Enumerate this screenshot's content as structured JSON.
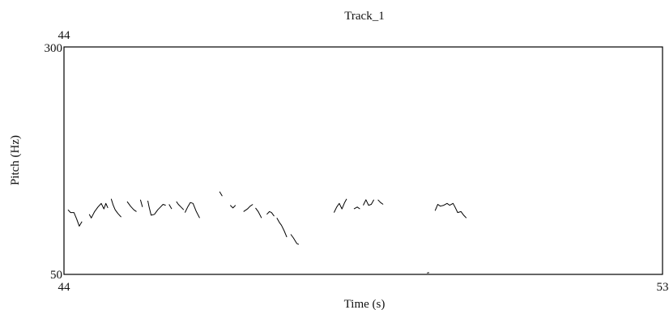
{
  "chart_data": {
    "type": "line",
    "title": "Track_1",
    "xlabel": "Time (s)",
    "ylabel": "Pitch (Hz)",
    "xlim": [
      44,
      53
    ],
    "ylim": [
      50,
      300
    ],
    "x_tick_labels": {
      "top_left": "44",
      "bottom_left": "44",
      "bottom_right": "53"
    },
    "y_tick_labels": {
      "top": "300",
      "bottom": "50"
    },
    "grid": false,
    "legend": "none",
    "line_color": "#000000",
    "series": [
      {
        "segments": [
          [
            [
              44.06,
              121
            ],
            [
              44.1,
              118
            ],
            [
              44.15,
              118
            ],
            [
              44.19,
              111
            ],
            [
              44.23,
              103
            ],
            [
              44.27,
              108
            ]
          ],
          [
            [
              44.38,
              116
            ],
            [
              44.41,
              112
            ],
            [
              44.46,
              119
            ],
            [
              44.51,
              124
            ],
            [
              44.56,
              128
            ],
            [
              44.6,
              122
            ],
            [
              44.63,
              128
            ],
            [
              44.66,
              123
            ]
          ],
          [
            [
              44.71,
              133
            ],
            [
              44.74,
              126
            ],
            [
              44.77,
              121
            ],
            [
              44.81,
              117
            ],
            [
              44.86,
              113
            ]
          ],
          [
            [
              44.95,
              130
            ],
            [
              45.0,
              125
            ],
            [
              45.05,
              121
            ],
            [
              45.09,
              119
            ]
          ],
          [
            [
              45.15,
              132
            ],
            [
              45.18,
              124
            ]
          ],
          [
            [
              45.26,
              131
            ],
            [
              45.28,
              124
            ],
            [
              45.31,
              115
            ],
            [
              45.36,
              116
            ],
            [
              45.41,
              121
            ],
            [
              45.45,
              124
            ],
            [
              45.49,
              127
            ],
            [
              45.53,
              126
            ]
          ],
          [
            [
              45.58,
              127
            ],
            [
              45.62,
              122
            ]
          ],
          [
            [
              45.69,
              130
            ],
            [
              45.72,
              127
            ],
            [
              45.76,
              124
            ],
            [
              45.8,
              121
            ]
          ],
          [
            [
              45.82,
              118
            ],
            [
              45.86,
              124
            ],
            [
              45.9,
              129
            ],
            [
              45.94,
              128
            ],
            [
              45.99,
              119
            ],
            [
              46.04,
              112
            ]
          ],
          [
            [
              46.34,
              141
            ],
            [
              46.38,
              136
            ]
          ],
          [
            [
              46.5,
              126
            ],
            [
              46.54,
              123
            ],
            [
              46.58,
              126
            ]
          ],
          [
            [
              46.7,
              119
            ],
            [
              46.76,
              122
            ],
            [
              46.8,
              125
            ],
            [
              46.84,
              127
            ]
          ],
          [
            [
              46.88,
              123
            ],
            [
              46.92,
              119
            ],
            [
              46.97,
              112
            ]
          ],
          [
            [
              47.05,
              116
            ],
            [
              47.09,
              119
            ],
            [
              47.12,
              118
            ],
            [
              47.16,
              114
            ]
          ],
          [
            [
              47.2,
              112
            ],
            [
              47.24,
              107
            ],
            [
              47.27,
              104
            ],
            [
              47.31,
              98
            ],
            [
              47.35,
              91
            ]
          ],
          [
            [
              47.41,
              94
            ],
            [
              47.45,
              90
            ],
            [
              47.5,
              84
            ],
            [
              47.53,
              83
            ]
          ],
          [
            [
              48.06,
              118
            ],
            [
              48.1,
              124
            ],
            [
              48.14,
              128
            ],
            [
              48.18,
              122
            ],
            [
              48.22,
              129
            ],
            [
              48.25,
              133
            ]
          ],
          [
            [
              48.36,
              122
            ],
            [
              48.41,
              124
            ],
            [
              48.45,
              122
            ]
          ],
          [
            [
              48.5,
              126
            ],
            [
              48.54,
              132
            ],
            [
              48.58,
              126
            ],
            [
              48.62,
              127
            ],
            [
              48.66,
              132
            ]
          ],
          [
            [
              48.72,
              132
            ],
            [
              48.76,
              129
            ],
            [
              48.8,
              127
            ]
          ],
          [
            [
              49.46,
              51.5
            ],
            [
              49.49,
              52
            ]
          ],
          [
            [
              49.58,
              120
            ],
            [
              49.62,
              127
            ],
            [
              49.66,
              125
            ],
            [
              49.71,
              126
            ],
            [
              49.76,
              128
            ],
            [
              49.8,
              126
            ],
            [
              49.85,
              128
            ],
            [
              49.88,
              124
            ],
            [
              49.92,
              118
            ],
            [
              49.97,
              119
            ],
            [
              50.01,
              115
            ],
            [
              50.05,
              112
            ]
          ]
        ]
      }
    ]
  }
}
